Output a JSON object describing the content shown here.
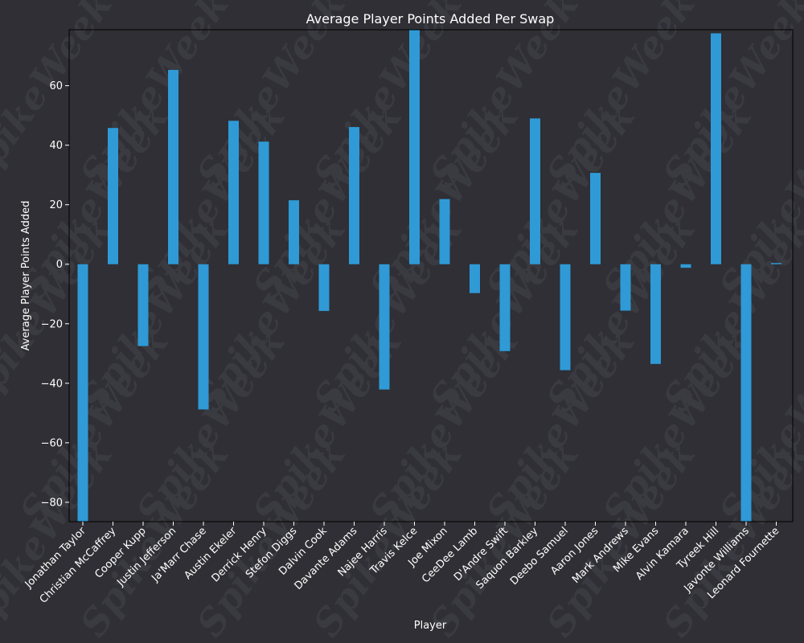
{
  "colors": {
    "background": "#2f2f35",
    "bar": "#2f9ad6",
    "text": "#ffffff",
    "axis": "#000000",
    "watermark": "#3a3a41"
  },
  "watermark": "SpikeWeek",
  "chart_data": {
    "type": "bar",
    "title": "Average Player Points Added Per Swap",
    "xlabel": "Player",
    "ylabel": "Average Player Points Added",
    "ylim": [
      -86.5,
      78.8
    ],
    "yticks": [
      -80,
      -60,
      -40,
      -20,
      0,
      20,
      40,
      60
    ],
    "ytick_labels": [
      "−80",
      "−60",
      "−40",
      "−20",
      "0",
      "20",
      "40",
      "60"
    ],
    "grid": false,
    "categories": [
      "Jonathan Taylor",
      "Christian McCaffrey",
      "Cooper Kupp",
      "Justin Jefferson",
      "Ja'Marr Chase",
      "Austin Ekeler",
      "Derrick Henry",
      "Stefon Diggs",
      "Dalvin Cook",
      "Davante Adams",
      "Najee Harris",
      "Travis Kelce",
      "Joe Mixon",
      "CeeDee Lamb",
      "D'Andre Swift",
      "Saquon Barkley",
      "Deebo Samuel",
      "Aaron Jones",
      "Mark Andrews",
      "Mike Evans",
      "Alvin Kamara",
      "Tyreek Hill",
      "Javonte Williams",
      "Leonard Fournette"
    ],
    "values": [
      -86.5,
      45.8,
      -27.5,
      65.3,
      -48.8,
      48.2,
      41.2,
      21.5,
      -15.7,
      46.1,
      -42.1,
      79.0,
      21.9,
      -9.7,
      -29.2,
      49.0,
      -35.6,
      30.7,
      -15.6,
      -33.5,
      -1.2,
      77.6,
      -86.5,
      0.4
    ]
  }
}
